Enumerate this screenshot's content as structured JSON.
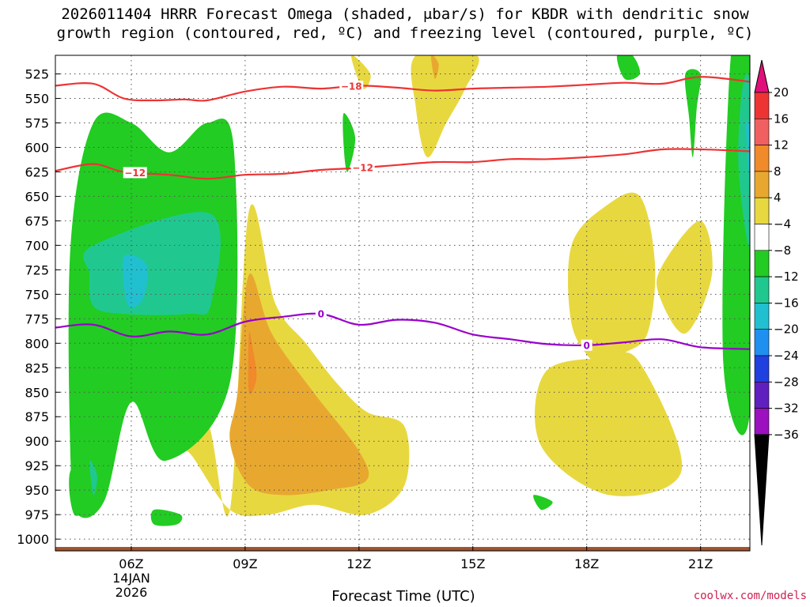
{
  "header": {
    "title_line1": "2026011404 HRRR Forecast Omega (shaded, μbar/s) for KBDR with dendritic snow",
    "title_line2": "growth region (contoured, red, ºC) and freezing level (contoured, purple, ºC)"
  },
  "footer": {
    "xlabel": "Forecast Time (UTC)",
    "credit": "coolwx.com/models"
  },
  "colors": {
    "snow_growth": "#ee3333",
    "freezing_level": "#9900cc",
    "terrain": "#a0522d"
  },
  "chart_data": {
    "type": "time-height cross section (filled contour)",
    "y_axis": {
      "ticks": [
        525,
        550,
        575,
        600,
        625,
        650,
        675,
        700,
        725,
        750,
        775,
        800,
        825,
        850,
        875,
        900,
        925,
        950,
        975,
        1000
      ],
      "range": [
        1012,
        506
      ],
      "unit": "hPa"
    },
    "x_axis": {
      "range_hours": [
        4,
        22.3
      ],
      "ticks": [
        {
          "hour": 6,
          "label": "06Z",
          "sub1": "14JAN",
          "sub2": "2026"
        },
        {
          "hour": 9,
          "label": "09Z",
          "sub1": "",
          "sub2": ""
        },
        {
          "hour": 12,
          "label": "12Z",
          "sub1": "",
          "sub2": ""
        },
        {
          "hour": 15,
          "label": "15Z",
          "sub1": "",
          "sub2": ""
        },
        {
          "hour": 18,
          "label": "18Z",
          "sub1": "",
          "sub2": ""
        },
        {
          "hour": 21,
          "label": "21Z",
          "sub1": "",
          "sub2": ""
        }
      ]
    },
    "colorbar": {
      "labels": [
        "20",
        "16",
        "12",
        "8",
        "4",
        "−4",
        "−8",
        "−12",
        "−16",
        "−20",
        "−24",
        "−28",
        "−32",
        "−36"
      ],
      "colors": [
        "#ee3333",
        "#f06060",
        "#f08a2a",
        "#e8a830",
        "#e8d840",
        "#ffffff",
        "#22cc22",
        "#20c890",
        "#20c0d0",
        "#2090f0",
        "#2040e0",
        "#6020c0",
        "#9c10c0",
        "#aaaaaa"
      ],
      "top_arrow": "#e0107a",
      "bottom_arrow": "#000000"
    },
    "contours": {
      "minus18": {
        "label": "−18",
        "hours": [
          4,
          5,
          5.8,
          6.6,
          7.4,
          8,
          9,
          10,
          11,
          12,
          13,
          14,
          15,
          16,
          17,
          18,
          19,
          20,
          21,
          22.3
        ],
        "pressure": [
          537,
          535,
          550,
          552,
          551,
          552,
          543,
          538,
          540,
          537,
          539,
          542,
          540,
          539,
          538,
          536,
          534,
          535,
          528,
          533
        ]
      },
      "minus12": {
        "label": "−12",
        "hours": [
          4,
          5,
          5.8,
          7,
          8,
          9,
          10,
          11,
          12,
          13,
          14,
          15,
          16,
          17,
          18,
          19,
          20,
          21,
          22.3
        ],
        "pressure": [
          624,
          617,
          625,
          628,
          632,
          628,
          627,
          623,
          621,
          618,
          615,
          615,
          612,
          612,
          610,
          607,
          602,
          602,
          604
        ]
      },
      "zero": {
        "label": "0",
        "hours": [
          4,
          5,
          6,
          7,
          8,
          9,
          10,
          11,
          12,
          13,
          14,
          15,
          16,
          17,
          18,
          19,
          20,
          21,
          22.3
        ],
        "pressure": [
          784,
          781,
          793,
          788,
          791,
          778,
          773,
          770,
          781,
          776,
          779,
          791,
          796,
          801,
          802,
          799,
          796,
          804,
          806
        ],
        "label_hours": [
          11,
          18
        ]
      }
    },
    "omega_regions": [
      {
        "value": "4",
        "hours": [
          8.6,
          9.1,
          9.8,
          10.6,
          11.4,
          12.2,
          13.2,
          13.2,
          12.2,
          10.8,
          9.6,
          8.6,
          7.6,
          7.2,
          8
        ],
        "pressure": [
          970,
          665,
          760,
          800,
          840,
          870,
          885,
          945,
          975,
          965,
          975,
          970,
          915,
          900,
          880
        ]
      },
      {
        "value": "8",
        "hours": [
          8.8,
          9.1,
          9.7,
          10.8,
          12,
          12.2,
          11.2,
          10,
          9.1,
          8.6
        ],
        "pressure": [
          850,
          730,
          790,
          850,
          910,
          940,
          950,
          955,
          945,
          900
        ]
      },
      {
        "value": "12",
        "hours": [
          9.1,
          9.2,
          9.3,
          9.1
        ],
        "pressure": [
          790,
          805,
          835,
          850
        ]
      },
      {
        "value": "4",
        "hours": [
          11.8,
          12.3,
          12.1
        ],
        "pressure": [
          506,
          525,
          540
        ]
      },
      {
        "value": "4",
        "hours": [
          13.5,
          15.1,
          14.8,
          14.3,
          13.8,
          13.5
        ],
        "pressure": [
          506,
          506,
          540,
          575,
          610,
          560
        ]
      },
      {
        "value": "8",
        "hours": [
          13.9,
          14.1,
          14
        ],
        "pressure": [
          506,
          515,
          530
        ]
      },
      {
        "value": "4",
        "hours": [
          17.6,
          18.5,
          19.4,
          19.8,
          19.6,
          19,
          18.6,
          18.2,
          17.6
        ],
        "pressure": [
          700,
          660,
          650,
          720,
          790,
          810,
          820,
          820,
          780
        ]
      },
      {
        "value": "4",
        "hours": [
          16.9,
          18.5,
          19.4,
          20.5,
          18.6,
          16.8
        ],
        "pressure": [
          830,
          815,
          820,
          930,
          955,
          905
        ]
      },
      {
        "value": "4",
        "hours": [
          20,
          21,
          21.3,
          20.6,
          19.9
        ],
        "pressure": [
          720,
          675,
          730,
          790,
          750
        ]
      },
      {
        "value": "-4",
        "hours": [
          4.4,
          5,
          6,
          7,
          8,
          8.7,
          8.6,
          6.9,
          6,
          5.3,
          4.6,
          4.4
        ],
        "pressure": [
          700,
          575,
          575,
          605,
          575,
          600,
          840,
          920,
          860,
          960,
          975,
          920
        ]
      },
      {
        "value": "-4",
        "hours": [
          4.4,
          5.1,
          5,
          4.5
        ],
        "pressure": [
          930,
          920,
          960,
          975
        ]
      },
      {
        "value": "-8",
        "hours": [
          5,
          8.1,
          8.1,
          7.5,
          5.8,
          5,
          4.9
        ],
        "pressure": [
          700,
          668,
          760,
          770,
          770,
          762,
          730
        ]
      },
      {
        "value": "-12",
        "hours": [
          5.8,
          6.4,
          6.3,
          5.9
        ],
        "pressure": [
          712,
          720,
          755,
          760
        ]
      },
      {
        "value": "-8",
        "hours": [
          4.9,
          5.1,
          5
        ],
        "pressure": [
          920,
          935,
          955
        ]
      },
      {
        "value": "-4",
        "hours": [
          11.6,
          11.9,
          11.7,
          11.6
        ],
        "pressure": [
          565,
          590,
          625,
          600
        ]
      },
      {
        "value": "-4",
        "hours": [
          16.6,
          17.1,
          16.8
        ],
        "pressure": [
          955,
          962,
          970
        ]
      },
      {
        "value": "-4",
        "hours": [
          6.6,
          7.3,
          7.2,
          6.6
        ],
        "pressure": [
          970,
          975,
          985,
          985
        ]
      },
      {
        "value": "-4",
        "hours": [
          18.8,
          19.2,
          19.4,
          19
        ],
        "pressure": [
          506,
          506,
          525,
          530
        ]
      },
      {
        "value": "-4",
        "hours": [
          20.6,
          21,
          20.9,
          20.8,
          20.7
        ],
        "pressure": [
          525,
          525,
          560,
          610,
          570
        ]
      },
      {
        "value": "-4",
        "hours": [
          21.8,
          22.3,
          22.3,
          21.6
        ],
        "pressure": [
          506,
          506,
          870,
          820
        ]
      },
      {
        "value": "-8",
        "hours": [
          22.1,
          22.3,
          22.3,
          22
        ],
        "pressure": [
          540,
          540,
          700,
          620
        ]
      },
      {
        "value": "-12",
        "hours": [
          22.2,
          22.3,
          22.3
        ],
        "pressure": [
          580,
          580,
          640
        ]
      }
    ],
    "terrain_top_hpa": 1008
  }
}
